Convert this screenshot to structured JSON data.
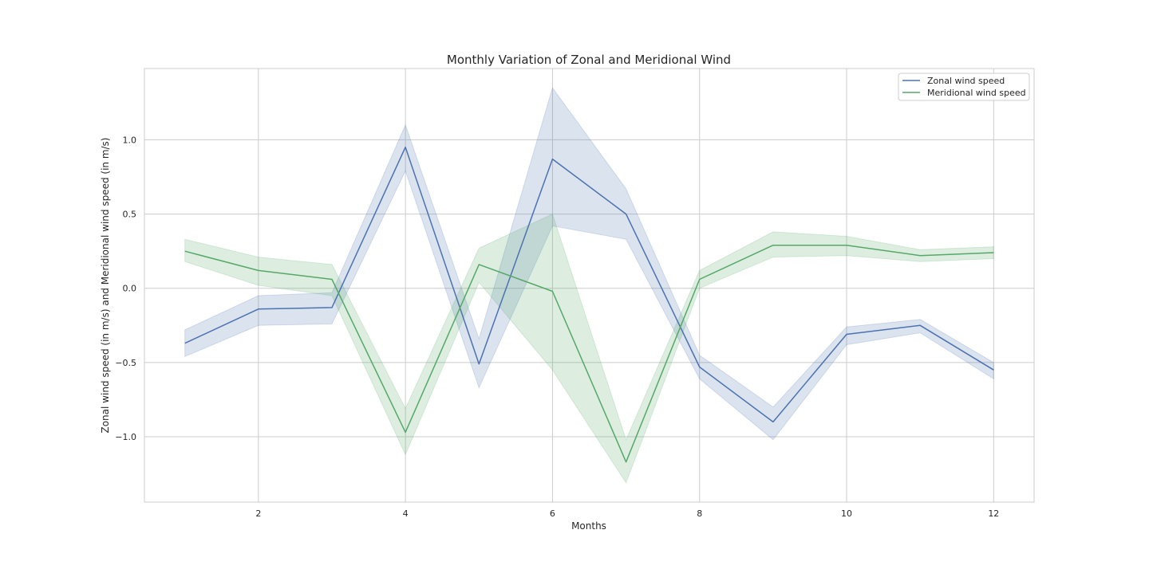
{
  "chart_data": {
    "type": "line",
    "title": "Monthly Variation of Zonal and Meridional Wind",
    "xlabel": "Months",
    "ylabel": "Zonal wind speed (in m/s) and Meridional wind speed (in m/s)",
    "x": [
      1,
      2,
      3,
      4,
      5,
      6,
      7,
      8,
      9,
      10,
      11,
      12
    ],
    "xlim": [
      0.45,
      12.55
    ],
    "ylim": [
      -1.44,
      1.48
    ],
    "xticks": [
      2,
      4,
      6,
      8,
      10,
      12
    ],
    "xtick_labels": [
      "2",
      "4",
      "6",
      "8",
      "10",
      "12"
    ],
    "yticks": [
      -1.0,
      -0.5,
      0.0,
      0.5,
      1.0
    ],
    "ytick_labels": [
      "−1.0",
      "−0.5",
      "0.0",
      "0.5",
      "1.0"
    ],
    "grid": true,
    "legend_position": "top-right",
    "series": [
      {
        "name": "Zonal wind speed",
        "color": "#4c72b0",
        "values": [
          -0.37,
          -0.14,
          -0.13,
          0.95,
          -0.51,
          0.87,
          0.5,
          -0.53,
          -0.9,
          -0.31,
          -0.25,
          -0.55
        ],
        "lower": [
          -0.46,
          -0.25,
          -0.24,
          0.79,
          -0.67,
          0.42,
          0.33,
          -0.61,
          -1.02,
          -0.38,
          -0.3,
          -0.61
        ],
        "upper": [
          -0.28,
          -0.05,
          -0.03,
          1.1,
          -0.34,
          1.35,
          0.67,
          -0.45,
          -0.8,
          -0.26,
          -0.21,
          -0.5
        ]
      },
      {
        "name": "Meridional wind speed",
        "color": "#55a868",
        "values": [
          0.25,
          0.12,
          0.06,
          -0.97,
          0.16,
          -0.02,
          -1.17,
          0.06,
          0.29,
          0.29,
          0.22,
          0.24
        ],
        "lower": [
          0.18,
          0.02,
          -0.05,
          -1.12,
          0.04,
          -0.55,
          -1.31,
          0.0,
          0.21,
          0.22,
          0.18,
          0.2
        ],
        "upper": [
          0.33,
          0.21,
          0.16,
          -0.81,
          0.27,
          0.5,
          -1.02,
          0.12,
          0.38,
          0.35,
          0.26,
          0.28
        ]
      }
    ]
  }
}
